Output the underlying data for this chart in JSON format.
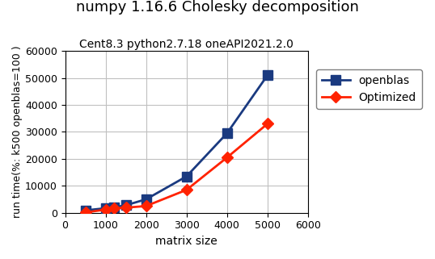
{
  "title": "numpy 1.16.6 Cholesky decomposition",
  "subtitle": "Cent8.3 python2.7.18 oneAPI2021.2.0",
  "xlabel": "matrix size",
  "ylabel": "run time(%: k500 openblas=100 )",
  "xlim": [
    0,
    6000
  ],
  "ylim": [
    0,
    60000
  ],
  "xticks": [
    0,
    1000,
    2000,
    3000,
    4000,
    5000,
    6000
  ],
  "yticks": [
    0,
    10000,
    20000,
    30000,
    40000,
    50000,
    60000
  ],
  "openblas_x": [
    500,
    1000,
    1200,
    1500,
    2000,
    3000,
    4000,
    5000
  ],
  "openblas_y": [
    900,
    1700,
    2000,
    2800,
    5000,
    13500,
    29500,
    51000
  ],
  "optimized_x": [
    500,
    1000,
    1200,
    1500,
    2000,
    3000,
    4000,
    5000
  ],
  "optimized_y": [
    100,
    1200,
    1600,
    1900,
    2500,
    8500,
    20500,
    33000
  ],
  "openblas_color": "#1a3a80",
  "optimized_color": "#ff2200",
  "openblas_label": "openblas",
  "optimized_label": "Optimized",
  "marker_openblas": "s",
  "marker_optimized": "D",
  "linewidth": 2.0,
  "markersize_openblas": 8,
  "markersize_optimized": 7,
  "title_fontsize": 13,
  "subtitle_fontsize": 10,
  "label_fontsize": 10,
  "tick_fontsize": 9,
  "legend_fontsize": 10,
  "background_color": "#ffffff",
  "grid_color": "#c0c0c0"
}
